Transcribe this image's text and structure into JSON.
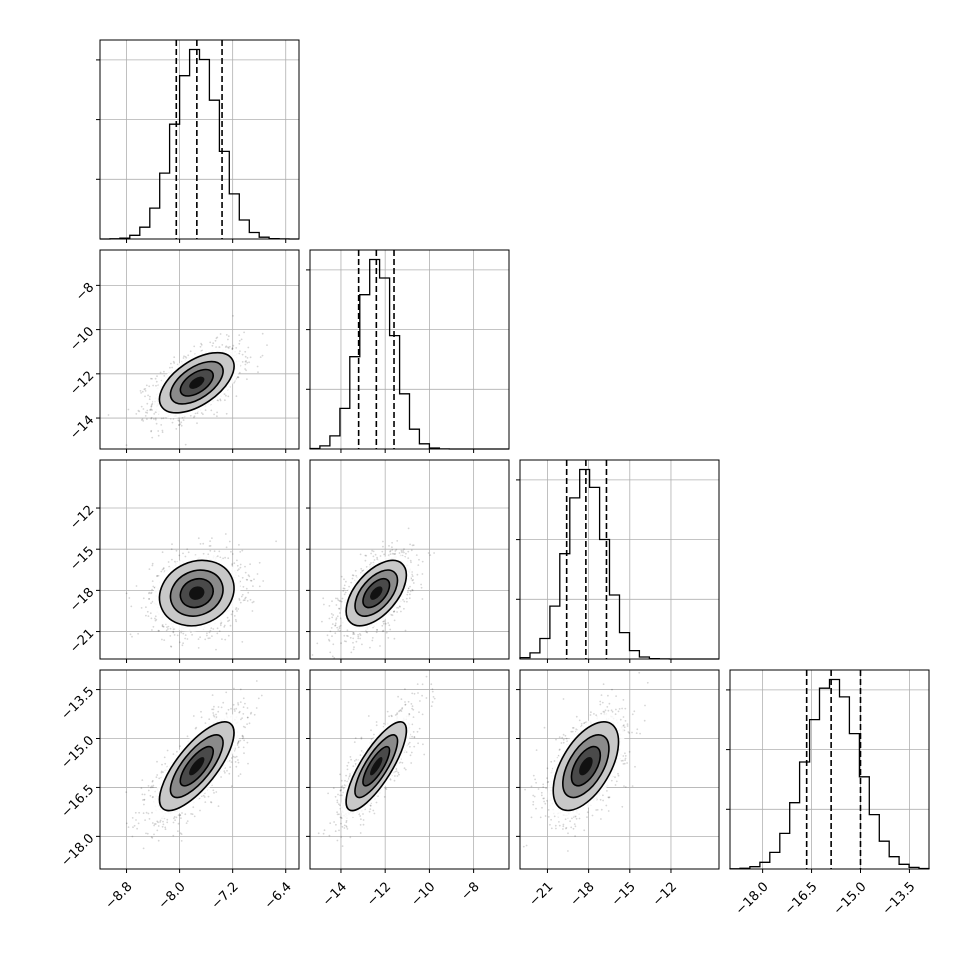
{
  "chart_data": {
    "type": "corner",
    "parameters": [
      {
        "range": [
          -9.2,
          -6.2
        ],
        "ticks": [
          -8.8,
          -8.0,
          -7.2,
          -6.4
        ],
        "tick_labels": [
          "−8.8",
          "−8.0",
          "−7.2",
          "−6.4"
        ],
        "quantiles": [
          -8.05,
          -7.74,
          -7.36
        ],
        "median": -7.74,
        "sd": 0.33
      },
      {
        "range": [
          -15.4,
          -6.4
        ],
        "ticks": [
          -14,
          -12,
          -10,
          -8
        ],
        "tick_labels": [
          "−14",
          "−12",
          "−10",
          "−8"
        ],
        "quantiles": [
          -13.2,
          -12.4,
          -11.6
        ],
        "median": -12.4,
        "sd": 0.8
      },
      {
        "range": [
          -23,
          -8.5
        ],
        "ticks": [
          -21,
          -18,
          -15,
          -12
        ],
        "tick_labels": [
          "−21",
          "−18",
          "−15",
          "−12"
        ],
        "quantiles": [
          -19.6,
          -18.2,
          -16.7
        ],
        "median": -18.2,
        "sd": 1.4
      },
      {
        "range": [
          -19.0,
          -12.9
        ],
        "ticks": [
          -18.0,
          -16.5,
          -15.0,
          -13.5
        ],
        "tick_labels": [
          "−18.0",
          "−16.5",
          "−15.0",
          "−13.5"
        ],
        "quantiles": [
          -16.65,
          -15.9,
          -15.0
        ],
        "median": -15.85,
        "sd": 0.8
      }
    ],
    "correlations": {
      "1-0": 0.55,
      "2-0": 0.15,
      "2-1": 0.55,
      "3-0": 0.75,
      "3-1": 0.8,
      "3-2": 0.55
    },
    "histogram_bins": 20,
    "grid": true,
    "quantile_line_style": "dashed"
  }
}
